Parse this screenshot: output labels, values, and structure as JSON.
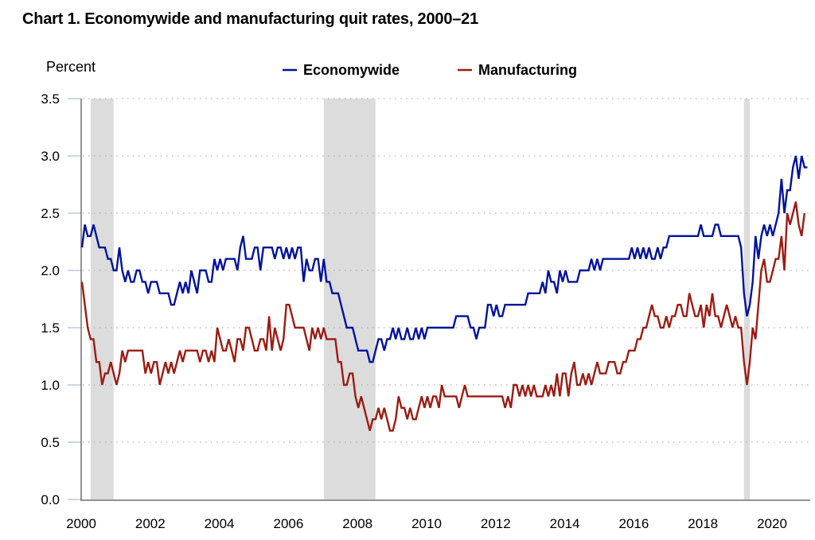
{
  "chart_data": {
    "type": "line",
    "title": "Chart 1. Economywide and manufacturing quit rates, 2000–21",
    "ylabel": "Percent",
    "xlabel": "",
    "ylim": [
      0.0,
      3.5
    ],
    "yticks": [
      "0.0",
      "0.5",
      "1.0",
      "1.5",
      "2.0",
      "2.5",
      "3.0",
      "3.5"
    ],
    "ytick_values": [
      0.0,
      0.5,
      1.0,
      1.5,
      2.0,
      2.5,
      3.0,
      3.5
    ],
    "xticks": [
      "2000",
      "2002",
      "2004",
      "2006",
      "2008",
      "2010",
      "2012",
      "2014",
      "2016",
      "2018",
      "2020"
    ],
    "xtick_months": [
      0,
      24,
      48,
      72,
      96,
      120,
      144,
      168,
      192,
      216,
      240
    ],
    "x_unit": "months since December 2000",
    "grid": "horizontal dotted",
    "legend_position": "top-center",
    "recessions": [
      {
        "start_month": 3,
        "end_month": 11
      },
      {
        "start_month": 84,
        "end_month": 102
      },
      {
        "start_month": 230,
        "end_month": 232
      }
    ],
    "recession_color": "#dcdcdc",
    "series": [
      {
        "name": "Economywide",
        "color": "#00129b",
        "values": [
          2.2,
          2.4,
          2.3,
          2.3,
          2.4,
          2.3,
          2.2,
          2.2,
          2.2,
          2.1,
          2.1,
          2.0,
          2.0,
          2.2,
          2.0,
          1.9,
          2.0,
          1.9,
          1.9,
          2.0,
          2.0,
          1.9,
          1.9,
          1.8,
          1.9,
          1.9,
          1.9,
          1.8,
          1.8,
          1.8,
          1.8,
          1.7,
          1.7,
          1.8,
          1.9,
          1.8,
          1.9,
          1.8,
          2.0,
          1.9,
          1.8,
          2.0,
          2.0,
          2.0,
          1.9,
          1.9,
          2.1,
          2.0,
          2.1,
          2.0,
          2.1,
          2.1,
          2.1,
          2.1,
          2.0,
          2.2,
          2.3,
          2.1,
          2.1,
          2.1,
          2.2,
          2.2,
          2.0,
          2.2,
          2.2,
          2.2,
          2.2,
          2.1,
          2.2,
          2.2,
          2.1,
          2.2,
          2.1,
          2.2,
          2.1,
          2.2,
          2.2,
          1.9,
          2.1,
          2.0,
          2.0,
          2.1,
          2.1,
          1.9,
          2.1,
          1.9,
          1.9,
          1.8,
          1.8,
          1.8,
          1.7,
          1.6,
          1.5,
          1.5,
          1.5,
          1.4,
          1.3,
          1.3,
          1.3,
          1.3,
          1.2,
          1.2,
          1.3,
          1.4,
          1.4,
          1.3,
          1.4,
          1.4,
          1.5,
          1.4,
          1.5,
          1.4,
          1.4,
          1.5,
          1.4,
          1.4,
          1.5,
          1.4,
          1.5,
          1.4,
          1.5,
          1.5,
          1.5,
          1.5,
          1.5,
          1.5,
          1.5,
          1.5,
          1.5,
          1.5,
          1.6,
          1.6,
          1.6,
          1.6,
          1.6,
          1.5,
          1.5,
          1.4,
          1.5,
          1.5,
          1.5,
          1.7,
          1.7,
          1.6,
          1.7,
          1.6,
          1.6,
          1.7,
          1.7,
          1.7,
          1.7,
          1.7,
          1.7,
          1.7,
          1.7,
          1.8,
          1.8,
          1.8,
          1.8,
          1.8,
          1.9,
          1.8,
          2.0,
          1.9,
          1.9,
          1.8,
          2.0,
          1.9,
          2.0,
          1.9,
          1.9,
          1.9,
          1.9,
          2.0,
          2.0,
          2.0,
          2.0,
          2.1,
          2.0,
          2.1,
          2.0,
          2.1,
          2.1,
          2.1,
          2.1,
          2.1,
          2.1,
          2.1,
          2.1,
          2.1,
          2.1,
          2.2,
          2.1,
          2.2,
          2.1,
          2.2,
          2.1,
          2.2,
          2.1,
          2.1,
          2.2,
          2.1,
          2.2,
          2.2,
          2.3,
          2.3,
          2.3,
          2.3,
          2.3,
          2.3,
          2.3,
          2.3,
          2.3,
          2.3,
          2.3,
          2.4,
          2.3,
          2.3,
          2.3,
          2.3,
          2.4,
          2.4,
          2.3,
          2.3,
          2.3,
          2.3,
          2.3,
          2.3,
          2.3,
          2.2,
          1.8,
          1.6,
          1.7,
          1.9,
          2.3,
          2.1,
          2.3,
          2.4,
          2.3,
          2.4,
          2.3,
          2.4,
          2.5,
          2.8,
          2.5,
          2.7,
          2.7,
          2.9,
          3.0,
          2.8,
          3.0,
          2.9,
          2.9
        ]
      },
      {
        "name": "Manufacturing",
        "color": "#9b1c14",
        "values": [
          1.9,
          1.7,
          1.5,
          1.4,
          1.4,
          1.2,
          1.2,
          1.0,
          1.1,
          1.1,
          1.2,
          1.1,
          1.0,
          1.1,
          1.3,
          1.2,
          1.3,
          1.3,
          1.3,
          1.3,
          1.3,
          1.3,
          1.1,
          1.2,
          1.1,
          1.2,
          1.2,
          1.0,
          1.1,
          1.2,
          1.1,
          1.2,
          1.1,
          1.2,
          1.3,
          1.2,
          1.3,
          1.3,
          1.3,
          1.3,
          1.3,
          1.2,
          1.3,
          1.3,
          1.2,
          1.3,
          1.2,
          1.5,
          1.4,
          1.3,
          1.3,
          1.4,
          1.3,
          1.2,
          1.4,
          1.4,
          1.3,
          1.5,
          1.5,
          1.4,
          1.3,
          1.3,
          1.4,
          1.4,
          1.3,
          1.6,
          1.3,
          1.5,
          1.4,
          1.3,
          1.4,
          1.7,
          1.7,
          1.6,
          1.5,
          1.5,
          1.5,
          1.5,
          1.4,
          1.3,
          1.5,
          1.4,
          1.5,
          1.4,
          1.5,
          1.4,
          1.4,
          1.4,
          1.4,
          1.2,
          1.2,
          1.0,
          1.0,
          1.1,
          1.1,
          0.9,
          0.8,
          0.9,
          0.8,
          0.7,
          0.6,
          0.7,
          0.7,
          0.8,
          0.7,
          0.8,
          0.7,
          0.6,
          0.6,
          0.7,
          0.9,
          0.8,
          0.8,
          0.7,
          0.8,
          0.7,
          0.7,
          0.8,
          0.9,
          0.8,
          0.9,
          0.8,
          0.9,
          0.9,
          0.8,
          1.0,
          0.9,
          0.9,
          0.9,
          0.9,
          0.9,
          0.8,
          0.9,
          1.0,
          0.9,
          0.9,
          0.9,
          0.9,
          0.9,
          0.9,
          0.9,
          0.9,
          0.9,
          0.9,
          0.9,
          0.9,
          0.9,
          0.8,
          0.9,
          0.8,
          1.0,
          1.0,
          0.9,
          1.0,
          0.9,
          1.0,
          0.9,
          1.0,
          0.9,
          0.9,
          0.9,
          1.0,
          0.9,
          1.0,
          0.9,
          1.1,
          0.9,
          1.1,
          1.1,
          0.9,
          1.1,
          1.2,
          1.0,
          1.0,
          1.1,
          1.0,
          1.1,
          1.0,
          1.1,
          1.2,
          1.1,
          1.1,
          1.1,
          1.2,
          1.2,
          1.2,
          1.1,
          1.1,
          1.2,
          1.2,
          1.3,
          1.3,
          1.3,
          1.4,
          1.4,
          1.5,
          1.5,
          1.6,
          1.7,
          1.6,
          1.6,
          1.5,
          1.5,
          1.6,
          1.5,
          1.6,
          1.6,
          1.7,
          1.7,
          1.6,
          1.6,
          1.8,
          1.7,
          1.6,
          1.6,
          1.7,
          1.5,
          1.7,
          1.6,
          1.8,
          1.6,
          1.6,
          1.5,
          1.6,
          1.7,
          1.6,
          1.5,
          1.6,
          1.5,
          1.5,
          1.2,
          1.0,
          1.2,
          1.5,
          1.4,
          1.7,
          2.0,
          2.1,
          1.9,
          1.9,
          2.0,
          2.1,
          2.1,
          2.3,
          2.0,
          2.5,
          2.4,
          2.5,
          2.6,
          2.4,
          2.3,
          2.5
        ]
      }
    ]
  },
  "legend": {
    "items": [
      "Economywide",
      "Manufacturing"
    ]
  }
}
